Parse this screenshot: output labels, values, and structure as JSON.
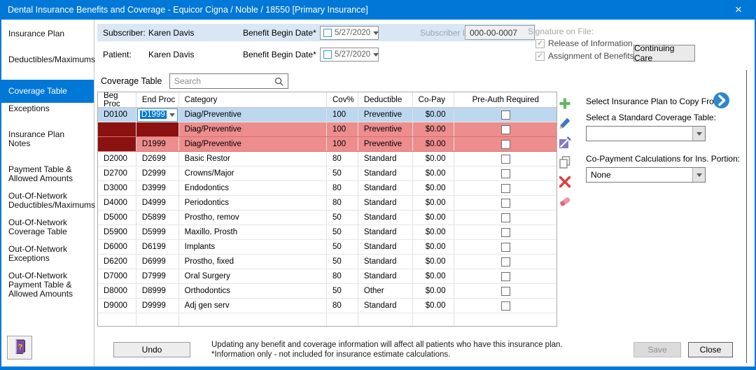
{
  "window": {
    "title": "Dental Insurance Benefits and Coverage - Equicor Cigna / Noble / 18550 [Primary Insurance]",
    "close_icon": "×"
  },
  "sidebar": {
    "items": [
      {
        "label": "Insurance Plan",
        "selected": false
      },
      {
        "label": "Deductibles/Maximums",
        "selected": false
      },
      {
        "label": "Coverage Table",
        "selected": true
      },
      {
        "label": "Exceptions",
        "selected": false
      },
      {
        "label": "Insurance Plan Notes",
        "selected": false
      },
      {
        "label": "Payment Table & Allowed Amounts",
        "selected": false
      },
      {
        "label": "Out-Of-Network Deductibles/Maximums",
        "selected": false
      },
      {
        "label": "Out-Of-Network Coverage Table",
        "selected": false
      },
      {
        "label": "Out-Of-Network Exceptions",
        "selected": false
      },
      {
        "label": "Out-Of-Network Payment Table & Allowed Amounts",
        "selected": false
      }
    ],
    "help_icon": "help-book-icon"
  },
  "form": {
    "subscriber_label": "Subscriber:",
    "subscriber_name": "Karen Davis",
    "patient_label": "Patient:",
    "patient_name": "Karen Davis",
    "benefit_begin_label": "Benefit Begin Date*",
    "subscriber_begin_date": "5/27/2020",
    "patient_begin_date": "5/27/2020",
    "subscriber_id_label": "Subscriber ID:",
    "subscriber_id_value": "000-00-0007",
    "signature_label": "Signature on File:",
    "signature_checks": [
      "Release of Information",
      "Assignment of Benefits"
    ],
    "continuing_care_button": "Continuing Care"
  },
  "coverage_table": {
    "label": "Coverage Table",
    "search_placeholder": "Search",
    "search_icon": "search-icon",
    "columns": [
      "Beg Proc",
      "End Proc",
      "Category",
      "Cov%",
      "Deductible",
      "Co-Pay",
      "Pre-Auth Required"
    ],
    "editing_end_proc_value": "D1999",
    "rows": [
      {
        "beg": "D0100",
        "end": "D1999",
        "category": "Diag/Preventive",
        "cov": "100",
        "deductible": "Preventive",
        "copay": "$0.00",
        "preauth": false,
        "state": "selected",
        "editing": true
      },
      {
        "beg": "",
        "end": "",
        "category": "Diag/Preventive",
        "cov": "100",
        "deductible": "Preventive",
        "copay": "$0.00",
        "preauth": false,
        "state": "error",
        "beg_dark": true,
        "end_dark": true
      },
      {
        "beg": "",
        "end": "D1999",
        "category": "Diag/Preventive",
        "cov": "100",
        "deductible": "Preventive",
        "copay": "$0.00",
        "preauth": false,
        "state": "error",
        "beg_dark": true
      },
      {
        "beg": "D2000",
        "end": "D2699",
        "category": "Basic Restor",
        "cov": "80",
        "deductible": "Standard",
        "copay": "$0.00",
        "preauth": false,
        "state": "normal"
      },
      {
        "beg": "D2700",
        "end": "D2999",
        "category": "Crowns/Major",
        "cov": "50",
        "deductible": "Standard",
        "copay": "$0.00",
        "preauth": false,
        "state": "normal"
      },
      {
        "beg": "D3000",
        "end": "D3999",
        "category": "Endodontics",
        "cov": "80",
        "deductible": "Standard",
        "copay": "$0.00",
        "preauth": false,
        "state": "normal"
      },
      {
        "beg": "D4000",
        "end": "D4999",
        "category": "Periodontics",
        "cov": "80",
        "deductible": "Standard",
        "copay": "$0.00",
        "preauth": false,
        "state": "normal"
      },
      {
        "beg": "D5000",
        "end": "D5899",
        "category": "Prostho, remov",
        "cov": "50",
        "deductible": "Standard",
        "copay": "$0.00",
        "preauth": false,
        "state": "normal"
      },
      {
        "beg": "D5900",
        "end": "D5999",
        "category": "Maxillo. Prosth",
        "cov": "50",
        "deductible": "Standard",
        "copay": "$0.00",
        "preauth": false,
        "state": "normal"
      },
      {
        "beg": "D6000",
        "end": "D6199",
        "category": "Implants",
        "cov": "50",
        "deductible": "Standard",
        "copay": "$0.00",
        "preauth": false,
        "state": "normal"
      },
      {
        "beg": "D6200",
        "end": "D6999",
        "category": "Prostho, fixed",
        "cov": "50",
        "deductible": "Standard",
        "copay": "$0.00",
        "preauth": false,
        "state": "normal"
      },
      {
        "beg": "D7000",
        "end": "D7999",
        "category": "Oral Surgery",
        "cov": "80",
        "deductible": "Standard",
        "copay": "$0.00",
        "preauth": false,
        "state": "normal"
      },
      {
        "beg": "D8000",
        "end": "D8999",
        "category": "Orthodontics",
        "cov": "50",
        "deductible": "Other",
        "copay": "$0.00",
        "preauth": false,
        "state": "normal"
      },
      {
        "beg": "D9000",
        "end": "D9999",
        "category": "Adj gen serv",
        "cov": "80",
        "deductible": "Standard",
        "copay": "$0.00",
        "preauth": false,
        "state": "normal"
      }
    ]
  },
  "right_panel": {
    "tool_icons": [
      "plus-icon",
      "pencil-icon",
      "edit-box-icon",
      "copy-icon",
      "delete-x-icon",
      "eraser-icon"
    ],
    "copy_from_label": "Select Insurance Plan to Copy From:",
    "copy_from_icon": "arrow-circle-icon",
    "standard_table_label": "Select a Standard Coverage Table:",
    "standard_table_value": "",
    "copay_calc_label": "Co-Payment Calculations for Ins. Portion:",
    "copay_calc_value": "None"
  },
  "footer": {
    "undo_button": "Undo",
    "note_line1": "Updating any benefit and coverage information will affect all patients who have this insurance plan.",
    "note_line2": "*Information only - not included for insurance estimate calculations.",
    "save_button": "Save",
    "close_button": "Close"
  },
  "colors": {
    "titlebar": "#0078D7",
    "selected_row": "#BDD7EE",
    "error_row": "#EE8D8D",
    "error_cell": "#8C1111",
    "subscriber_strip": "#D9E7F5",
    "accent": "#0078D7"
  }
}
